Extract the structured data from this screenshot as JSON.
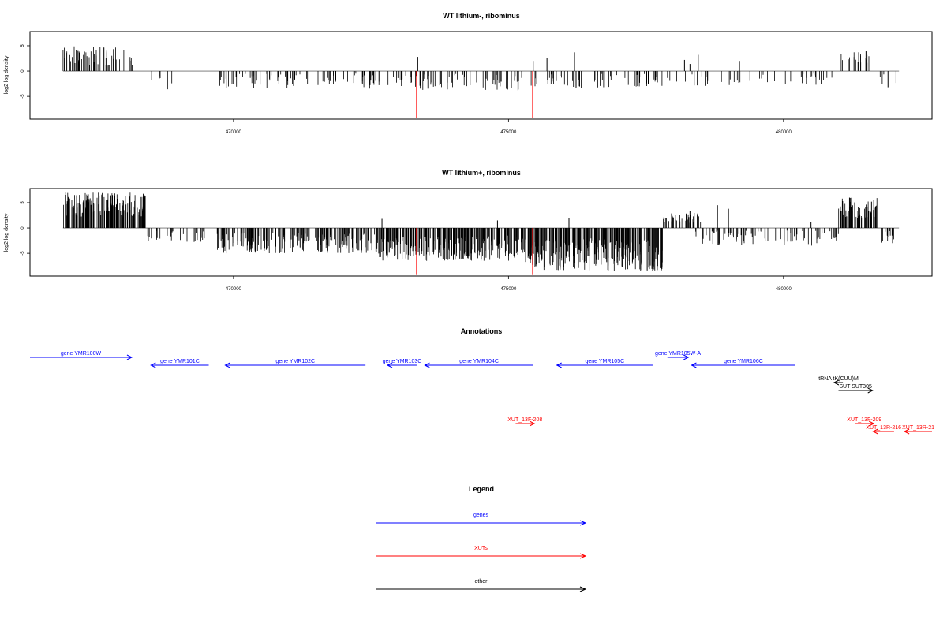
{
  "colors": {
    "gene": "#0000ff",
    "xut": "#ff0000",
    "other": "#000000",
    "track_bar": "#000000",
    "highlight_bar": "#ff0000"
  },
  "chart_data": [
    {
      "type": "bar",
      "title": "WT lithium-, ribominus",
      "ylabel": "log2 log density",
      "xlim": [
        466300,
        482700
      ],
      "ylim": [
        -9.5,
        7.8
      ],
      "xticks": [
        470000,
        475000,
        480000
      ],
      "xtick_labels": [
        "470000",
        "475000",
        "480000"
      ],
      "yticks": [
        -5,
        0,
        5
      ],
      "ytick_labels": [
        "-5",
        "0",
        "5"
      ],
      "baseline_range": [
        466900,
        482100
      ],
      "segments": [
        {
          "from": 466900,
          "to": 468200,
          "count": 60,
          "min": 1.0,
          "max": 5.0
        },
        {
          "from": 468400,
          "to": 469000,
          "count": 5,
          "min": -3.5,
          "max": -0.8
        },
        {
          "from": 469700,
          "to": 472600,
          "count": 80,
          "min": -3.5,
          "max": -0.5
        },
        {
          "from": 472600,
          "to": 473200,
          "count": 12,
          "min": -3.2,
          "max": -0.5
        },
        {
          "from": 473200,
          "to": 475300,
          "count": 70,
          "min": -3.8,
          "max": -0.5
        },
        {
          "from": 475400,
          "to": 477800,
          "count": 65,
          "min": -3.5,
          "max": -0.5
        },
        {
          "from": 477800,
          "to": 480900,
          "count": 45,
          "min": -3.0,
          "max": -0.5
        },
        {
          "from": 481000,
          "to": 481600,
          "count": 18,
          "min": 1.5,
          "max": 3.8
        },
        {
          "from": 481700,
          "to": 482100,
          "count": 6,
          "min": -3.0,
          "max": -0.5
        }
      ],
      "peaks": [
        {
          "x": 467900,
          "y": 5.0
        },
        {
          "x": 473350,
          "y": 2.8
        },
        {
          "x": 475450,
          "y": 2.0
        },
        {
          "x": 475700,
          "y": 2.5
        },
        {
          "x": 476200,
          "y": 3.7
        },
        {
          "x": 478200,
          "y": 2.2
        },
        {
          "x": 478300,
          "y": 1.4
        },
        {
          "x": 478450,
          "y": 3.2
        },
        {
          "x": 479200,
          "y": 2.0
        },
        {
          "x": 481500,
          "y": 3.9
        },
        {
          "x": 468800,
          "y": -3.6
        },
        {
          "x": 481900,
          "y": -3.2
        }
      ],
      "highlights": [
        {
          "x": 473330,
          "y": -9.3
        },
        {
          "x": 475440,
          "y": -9.3
        }
      ]
    },
    {
      "type": "bar",
      "title": "WT lithium+, ribominus",
      "ylabel": "log2 log density",
      "xlim": [
        466300,
        482700
      ],
      "ylim": [
        -9.5,
        7.8
      ],
      "xticks": [
        470000,
        475000,
        480000
      ],
      "xtick_labels": [
        "470000",
        "475000",
        "480000"
      ],
      "yticks": [
        -5,
        0,
        5
      ],
      "ytick_labels": [
        "-5",
        "0",
        "5"
      ],
      "baseline_range": [
        466900,
        482100
      ],
      "segments": [
        {
          "from": 466900,
          "to": 468400,
          "count": 170,
          "min": 2.0,
          "max": 7.0
        },
        {
          "from": 468400,
          "to": 469500,
          "count": 25,
          "min": -2.8,
          "max": -0.5
        },
        {
          "from": 469700,
          "to": 472600,
          "count": 190,
          "min": -5.0,
          "max": -1.0
        },
        {
          "from": 472600,
          "to": 475300,
          "count": 260,
          "min": -6.5,
          "max": -1.5
        },
        {
          "from": 475300,
          "to": 477800,
          "count": 300,
          "min": -8.5,
          "max": -2.0
        },
        {
          "from": 477800,
          "to": 478500,
          "count": 40,
          "min": 1.0,
          "max": 3.0
        },
        {
          "from": 478400,
          "to": 481000,
          "count": 80,
          "min": -3.5,
          "max": -0.5
        },
        {
          "from": 481000,
          "to": 481700,
          "count": 70,
          "min": 2.0,
          "max": 6.0
        },
        {
          "from": 481700,
          "to": 482100,
          "count": 15,
          "min": -3.0,
          "max": -0.5
        }
      ],
      "peaks": [
        {
          "x": 466950,
          "y": 7.0
        },
        {
          "x": 467800,
          "y": 6.5
        },
        {
          "x": 468350,
          "y": 3.0
        },
        {
          "x": 472700,
          "y": 1.8
        },
        {
          "x": 474800,
          "y": 1.5
        },
        {
          "x": 476100,
          "y": 2.0
        },
        {
          "x": 478300,
          "y": 3.4
        },
        {
          "x": 478800,
          "y": 4.5
        },
        {
          "x": 479000,
          "y": 3.8
        },
        {
          "x": 481200,
          "y": 6.0
        },
        {
          "x": 480500,
          "y": 1.2
        },
        {
          "x": 481600,
          "y": 5.2
        }
      ],
      "highlights": [
        {
          "x": 473330,
          "y": -9.3
        },
        {
          "x": 475440,
          "y": -9.3
        }
      ]
    }
  ],
  "annotations": {
    "title": "Annotations",
    "items": [
      {
        "label": "gene YMR100W",
        "color": "#0000ff",
        "strand": "+",
        "start": 466300,
        "end": 468150,
        "row": 0
      },
      {
        "label": "gene YMR101C",
        "color": "#0000ff",
        "strand": "-",
        "start": 468500,
        "end": 469550,
        "row": 1
      },
      {
        "label": "gene YMR102C",
        "color": "#0000ff",
        "strand": "-",
        "start": 469850,
        "end": 472400,
        "row": 1
      },
      {
        "label": "gene YMR103C",
        "color": "#0000ff",
        "strand": "-",
        "start": 472800,
        "end": 473330,
        "row": 1
      },
      {
        "label": "gene YMR104C",
        "color": "#0000ff",
        "strand": "-",
        "start": 473480,
        "end": 475450,
        "row": 1
      },
      {
        "label": "gene YMR105C",
        "color": "#0000ff",
        "strand": "-",
        "start": 475880,
        "end": 477620,
        "row": 1
      },
      {
        "label": "gene YMR105W-A",
        "color": "#0000ff",
        "strand": "+",
        "start": 477890,
        "end": 478270,
        "row": 0
      },
      {
        "label": "gene YMR106C",
        "color": "#0000ff",
        "strand": "-",
        "start": 478330,
        "end": 480210,
        "row": 1
      },
      {
        "label": "tRNA tK(CUU)M",
        "color": "#000000",
        "strand": "-",
        "start": 480920,
        "end": 481080,
        "row": 2
      },
      {
        "label": "SUT SUT305",
        "color": "#000000",
        "strand": "+",
        "start": 481000,
        "end": 481620,
        "row": 3
      },
      {
        "label": "XUT_13F-208",
        "color": "#ff0000",
        "strand": "+",
        "start": 475130,
        "end": 475470,
        "row": 4
      },
      {
        "label": "XUT_13F-209",
        "color": "#ff0000",
        "strand": "+",
        "start": 481300,
        "end": 481640,
        "row": 4
      },
      {
        "label": "XUT_13R-216",
        "color": "#ff0000",
        "strand": "-",
        "start": 481630,
        "end": 482010,
        "row": 5
      },
      {
        "label": "XUT_13R-21",
        "color": "#ff0000",
        "strand": "-",
        "start": 482200,
        "end": 482700,
        "row": 5
      }
    ]
  },
  "legend": {
    "title": "Legend",
    "entries": [
      {
        "label": "genes",
        "color": "#0000ff"
      },
      {
        "label": "XUTs",
        "color": "#ff0000"
      },
      {
        "label": "other",
        "color": "#000000"
      }
    ]
  }
}
